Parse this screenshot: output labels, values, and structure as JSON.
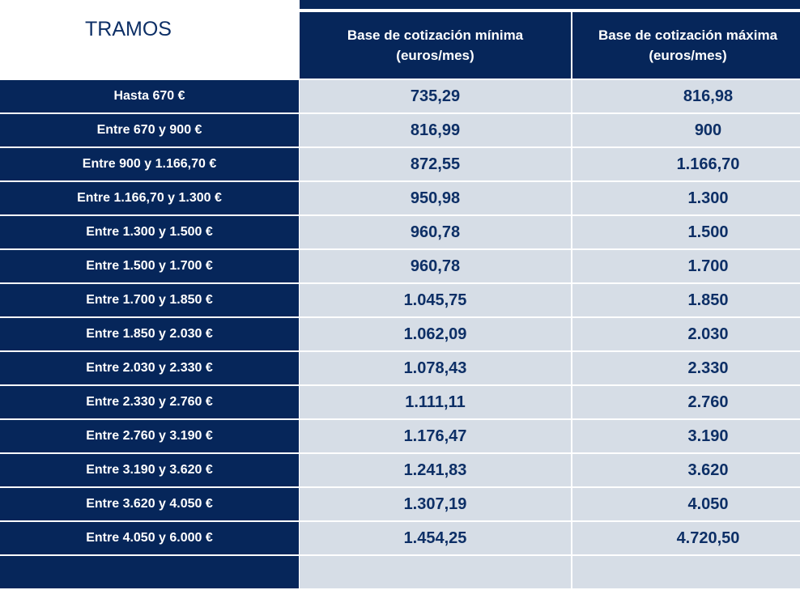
{
  "table": {
    "headers": [
      "TRAMOS",
      "Base de cotización mínima\n(euros/mes)",
      "Base de cotización máxima\n(euros/mes)"
    ],
    "rows": [
      [
        "Hasta 670 €",
        "735,29",
        "816,98"
      ],
      [
        "Entre 670 y 900 €",
        "816,99",
        "900"
      ],
      [
        "Entre 900 y 1.166,70 €",
        "872,55",
        "1.166,70"
      ],
      [
        "Entre 1.166,70 y 1.300 €",
        "950,98",
        "1.300"
      ],
      [
        "Entre 1.300 y 1.500 €",
        "960,78",
        "1.500"
      ],
      [
        "Entre 1.500 y 1.700 €",
        "960,78",
        "1.700"
      ],
      [
        "Entre 1.700 y 1.850 €",
        "1.045,75",
        "1.850"
      ],
      [
        "Entre 1.850 y 2.030 €",
        "1.062,09",
        "2.030"
      ],
      [
        "Entre 2.030 y 2.330 €",
        "1.078,43",
        "2.330"
      ],
      [
        "Entre 2.330 y 2.760 €",
        "1.111,11",
        "2.760"
      ],
      [
        "Entre 2.760 y 3.190 €",
        "1.176,47",
        "3.190"
      ],
      [
        "Entre 3.190 y 3.620 €",
        "1.241,83",
        "3.620"
      ],
      [
        "Entre 3.620 y 4.050 €",
        "1.307,19",
        "4.050"
      ],
      [
        "Entre 4.050 y 6.000 €",
        "1.454,25",
        "4.720,50"
      ],
      [
        "",
        "",
        ""
      ]
    ]
  },
  "colors": {
    "header_bg": "#06265a",
    "cell_bg": "#d6dde6",
    "value_text": "#0d2f66"
  }
}
